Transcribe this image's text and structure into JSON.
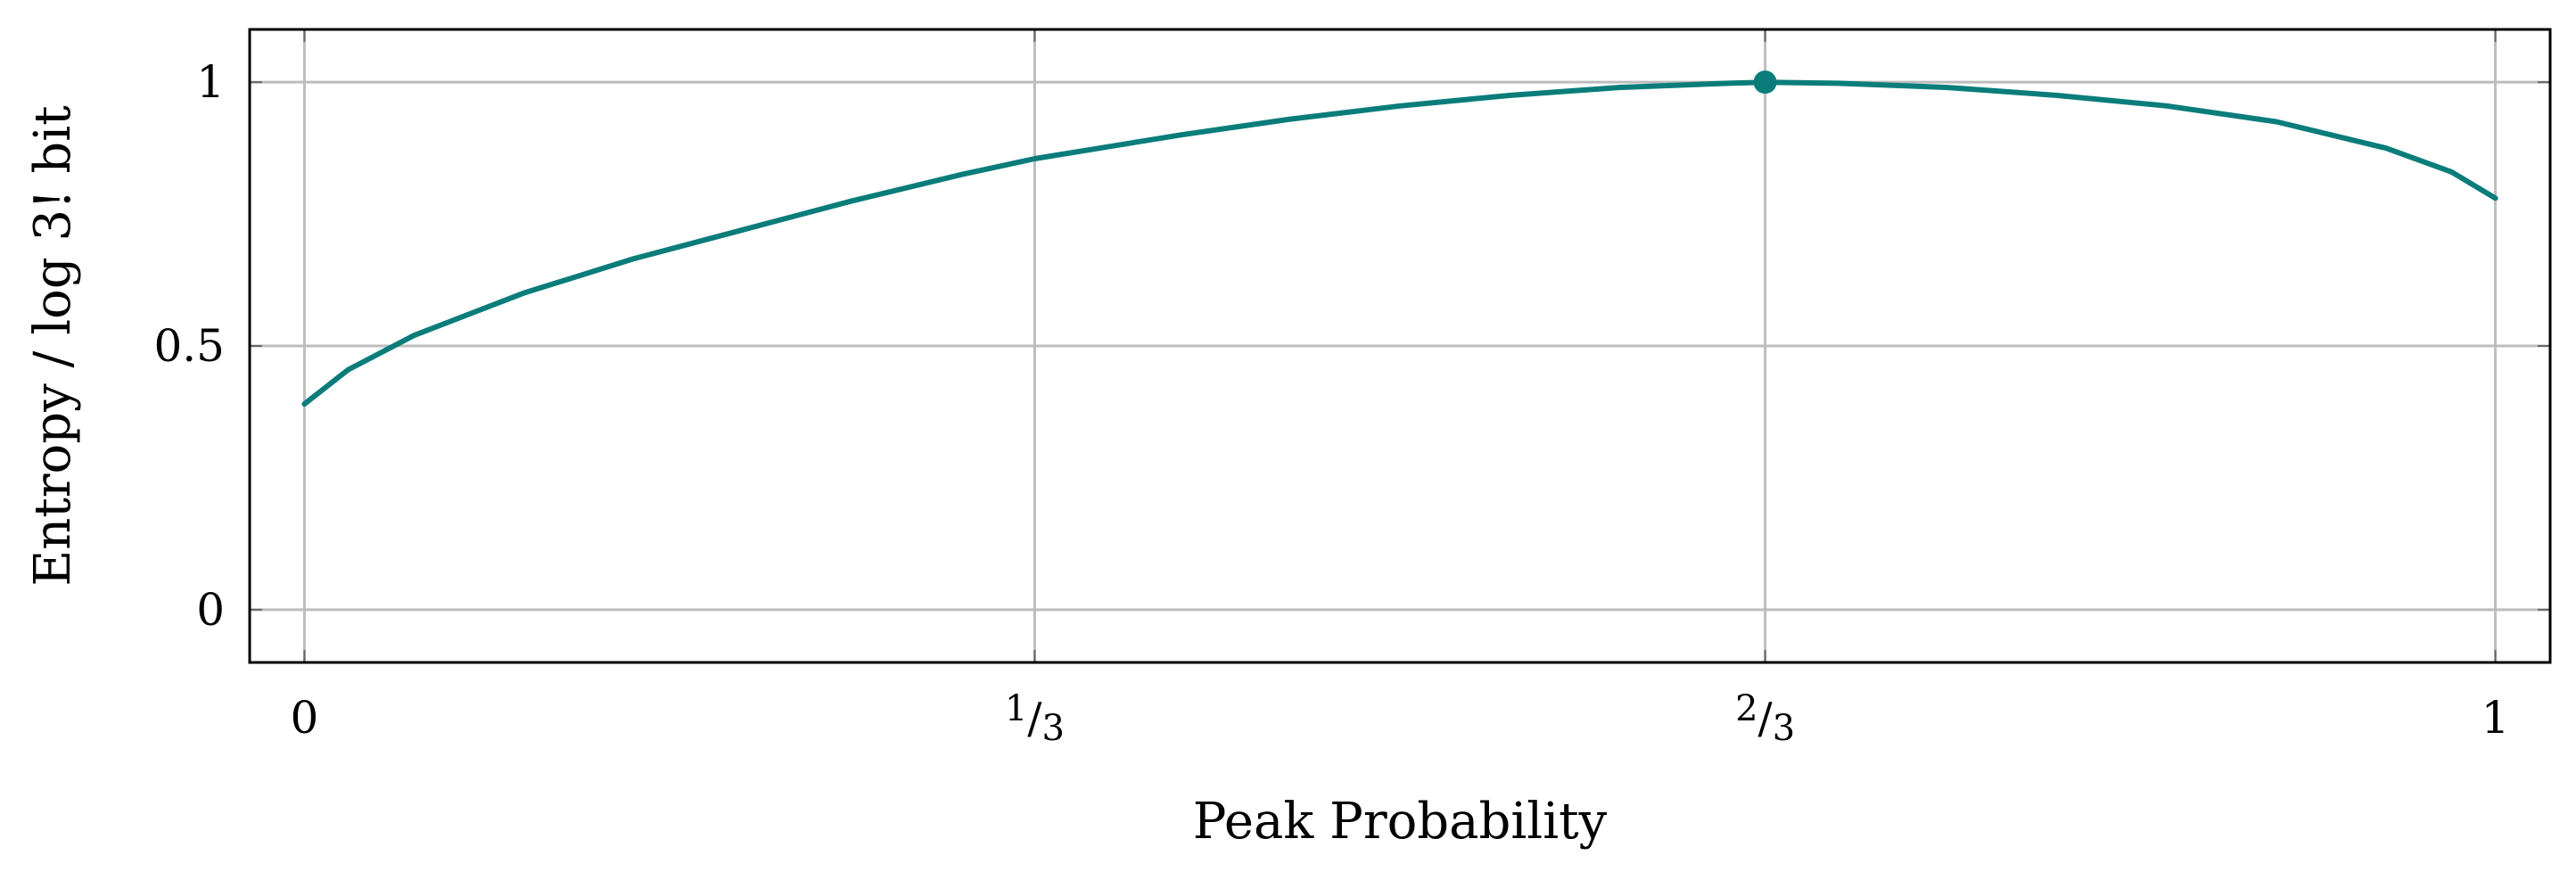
{
  "chart_data": {
    "type": "line",
    "title": "",
    "xlabel": "Peak Probability",
    "ylabel": "Entropy / log 3! bit",
    "xlim": [
      -0.025,
      1.025
    ],
    "ylim": [
      -0.1,
      1.1
    ],
    "grid": true,
    "x_ticks": [
      {
        "value": 0,
        "label": "0"
      },
      {
        "value": 0.3333,
        "label": "1/3",
        "num": "1",
        "den": "3"
      },
      {
        "value": 0.6667,
        "label": "2/3",
        "num": "2",
        "den": "3"
      },
      {
        "value": 1,
        "label": "1"
      }
    ],
    "y_ticks": [
      {
        "value": 0,
        "label": "0"
      },
      {
        "value": 0.5,
        "label": "0.5"
      },
      {
        "value": 1,
        "label": "1"
      }
    ],
    "series": [
      {
        "color": "#0a7d7b",
        "x": [
          0,
          0.02,
          0.05,
          0.1,
          0.15,
          0.2,
          0.25,
          0.3,
          0.3333,
          0.4,
          0.45,
          0.5,
          0.55,
          0.6,
          0.65,
          0.6667,
          0.7,
          0.75,
          0.8,
          0.85,
          0.9,
          0.95,
          0.98,
          1
        ],
        "y": [
          0.39,
          0.455,
          0.52,
          0.6,
          0.665,
          0.72,
          0.775,
          0.825,
          0.855,
          0.9,
          0.93,
          0.955,
          0.975,
          0.99,
          0.998,
          1.0,
          0.998,
          0.99,
          0.975,
          0.955,
          0.925,
          0.875,
          0.83,
          0.78
        ]
      }
    ],
    "marker": {
      "x": 0.6667,
      "y": 1.0,
      "color": "#0a7d7b"
    }
  }
}
